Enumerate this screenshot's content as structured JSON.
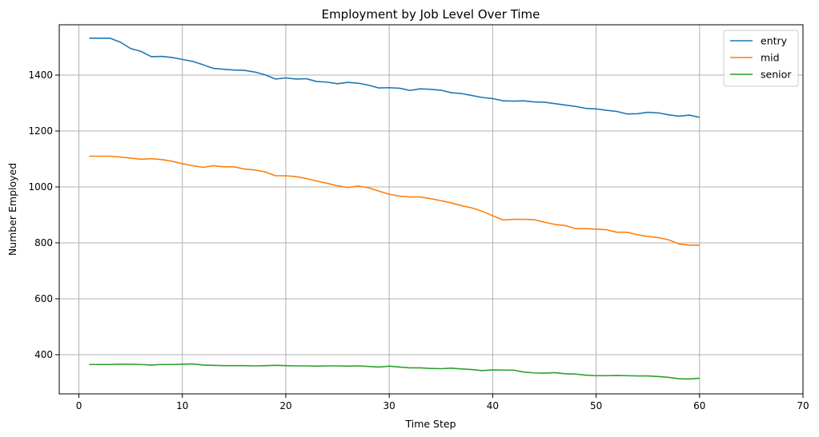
{
  "chart_data": {
    "type": "line",
    "title": "Employment by Job Level Over Time",
    "xlabel": "Time Step",
    "ylabel": "Number Employed",
    "xlim": [
      -1.9,
      70
    ],
    "ylim": [
      260,
      1580
    ],
    "xticks": [
      0,
      10,
      20,
      30,
      40,
      50,
      60,
      70
    ],
    "yticks": [
      400,
      600,
      800,
      1000,
      1200,
      1400
    ],
    "grid": true,
    "legend_position": "top-right",
    "x": [
      1,
      2,
      3,
      4,
      5,
      6,
      7,
      8,
      9,
      10,
      11,
      12,
      13,
      14,
      15,
      16,
      17,
      18,
      19,
      20,
      21,
      22,
      23,
      24,
      25,
      26,
      27,
      28,
      29,
      30,
      31,
      32,
      33,
      34,
      35,
      36,
      37,
      38,
      39,
      40,
      41,
      42,
      43,
      44,
      45,
      46,
      47,
      48,
      49,
      50,
      51,
      52,
      53,
      54,
      55,
      56,
      57,
      58,
      59,
      60
    ],
    "series": [
      {
        "name": "entry",
        "color": "#1f77b4",
        "values": [
          1532,
          1532,
          1532,
          1518,
          1495,
          1485,
          1466,
          1467,
          1463,
          1456,
          1449,
          1437,
          1424,
          1421,
          1418,
          1417,
          1411,
          1401,
          1386,
          1390,
          1386,
          1387,
          1377,
          1375,
          1369,
          1374,
          1371,
          1364,
          1354,
          1355,
          1353,
          1345,
          1351,
          1349,
          1346,
          1337,
          1334,
          1327,
          1320,
          1316,
          1308,
          1307,
          1308,
          1304,
          1303,
          1298,
          1293,
          1288,
          1281,
          1279,
          1274,
          1270,
          1261,
          1262,
          1267,
          1265,
          1258,
          1253,
          1257,
          1249
        ]
      },
      {
        "name": "mid",
        "color": "#ff7f0e",
        "values": [
          1110,
          1110,
          1110,
          1107,
          1103,
          1099,
          1101,
          1098,
          1092,
          1083,
          1076,
          1070,
          1076,
          1072,
          1072,
          1064,
          1061,
          1054,
          1040,
          1040,
          1037,
          1030,
          1021,
          1013,
          1004,
          998,
          1003,
          997,
          985,
          974,
          967,
          964,
          964,
          958,
          951,
          943,
          933,
          925,
          913,
          897,
          882,
          884,
          884,
          883,
          874,
          866,
          862,
          851,
          851,
          849,
          847,
          838,
          838,
          829,
          823,
          819,
          811,
          796,
          792,
          792
        ]
      },
      {
        "name": "senior",
        "color": "#2ca02c",
        "values": [
          365,
          365,
          365,
          366,
          366,
          365,
          363,
          365,
          365,
          366,
          367,
          363,
          362,
          361,
          361,
          361,
          360,
          361,
          362,
          361,
          360,
          360,
          359,
          360,
          360,
          359,
          360,
          358,
          356,
          359,
          356,
          353,
          353,
          351,
          350,
          352,
          349,
          347,
          343,
          346,
          345,
          345,
          338,
          335,
          334,
          336,
          332,
          331,
          327,
          325,
          325,
          326,
          325,
          324,
          324,
          322,
          319,
          314,
          313,
          316
        ]
      }
    ]
  }
}
